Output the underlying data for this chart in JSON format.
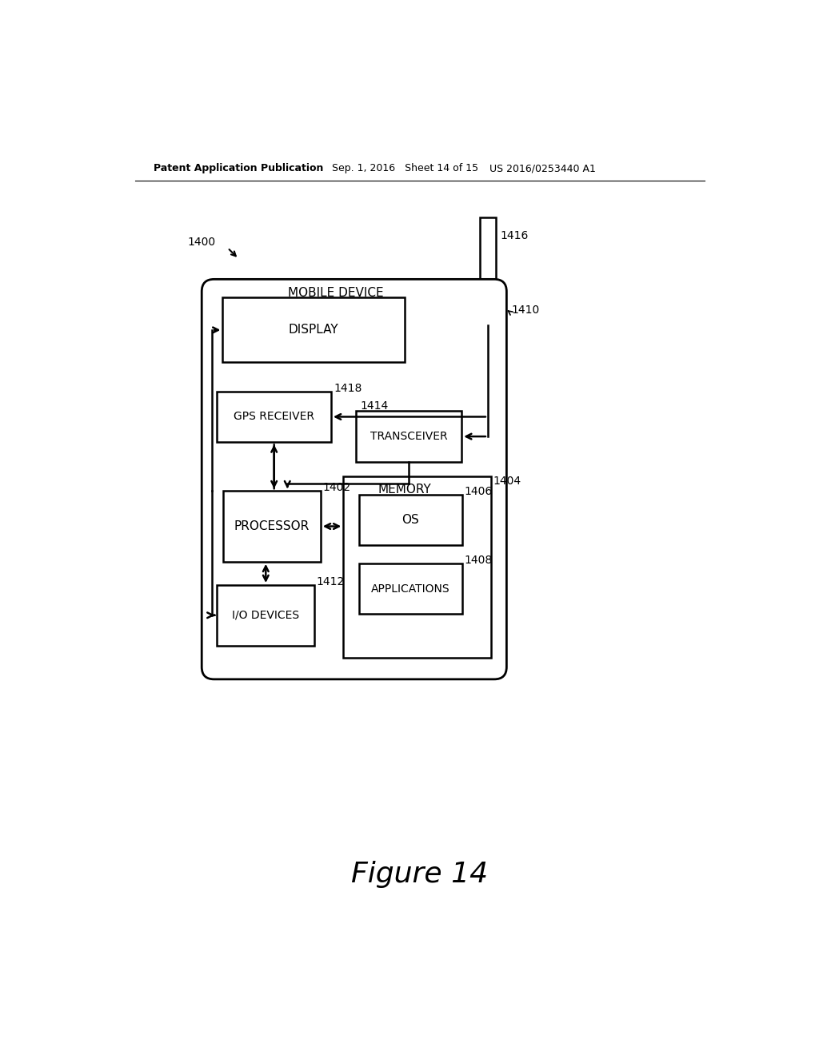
{
  "bg_color": "#ffffff",
  "text_color": "#000000",
  "header_left": "Patent Application Publication",
  "header_mid": "Sep. 1, 2016   Sheet 14 of 15",
  "header_right": "US 2016/0253440 A1",
  "figure_label": "Figure 14",
  "label_1400": "1400",
  "label_1416": "1416",
  "label_1410": "1410",
  "label_1418": "1418",
  "label_1414": "1414",
  "label_1402": "1402",
  "label_1404": "1404",
  "label_1406": "1406",
  "label_1408": "1408",
  "label_1412": "1412",
  "mobile_device_label": "MOBILE DEVICE",
  "display_label": "DISPLAY",
  "gps_label": "GPS RECEIVER",
  "transceiver_label": "TRANSCEIVER",
  "processor_label": "PROCESSOR",
  "memory_label": "MEMORY",
  "os_label": "OS",
  "applications_label": "APPLICATIONS",
  "io_label": "I/O DEVICES"
}
